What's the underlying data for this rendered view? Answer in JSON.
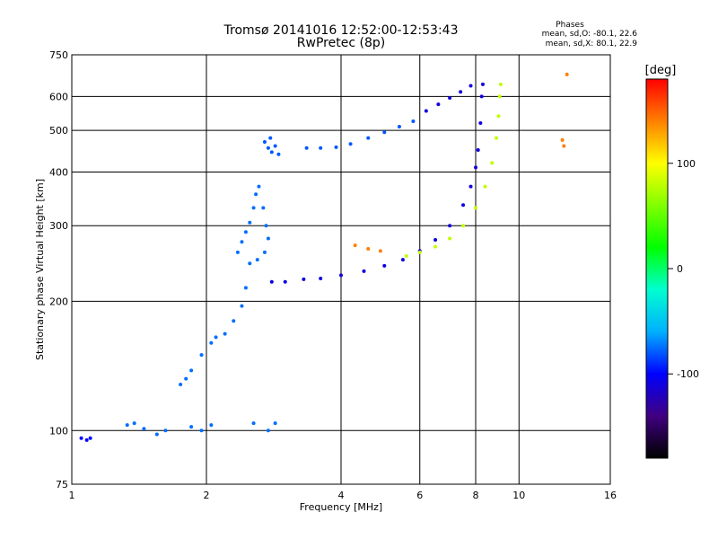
{
  "chart_data": {
    "type": "scatter",
    "title": "Tromsø 20141016 12:52:00-12:53:43",
    "subtitle": "RwPretec (8p)",
    "xlabel": "Frequency [MHz]",
    "ylabel": "Stationary phase Virtual Height [km]",
    "x_scale": "log",
    "y_scale": "log",
    "xlim": [
      1,
      16
    ],
    "ylim": [
      75,
      750
    ],
    "x_ticks": [
      1,
      2,
      4,
      6,
      8,
      10,
      16
    ],
    "y_ticks": [
      75,
      100,
      200,
      300,
      400,
      500,
      600,
      750
    ],
    "grid": true,
    "colorbar": {
      "label": "[deg]",
      "range": [
        -180,
        180
      ],
      "ticks": [
        100,
        0,
        -100
      ],
      "colors": [
        "#ff0000",
        "#ff8000",
        "#ffff00",
        "#80ff00",
        "#00ff00",
        "#00ffd0",
        "#00b0ff",
        "#0000ff",
        "#400080",
        "#000000"
      ]
    },
    "phases_heading": "Phases",
    "phases_O": "mean, sd,O: -80.1, 22.6",
    "phases_X": "mean, sd,X: 80.1, 22.9",
    "traces": [
      {
        "name": "",
        "phase": -100,
        "points": [
          [
            1.05,
            96
          ],
          [
            1.08,
            95
          ],
          [
            1.1,
            96
          ]
        ]
      },
      {
        "name": "",
        "phase": -75,
        "points": [
          [
            1.33,
            103
          ],
          [
            1.38,
            104
          ],
          [
            1.45,
            101
          ],
          [
            1.55,
            98
          ],
          [
            1.62,
            100
          ],
          [
            1.85,
            102
          ],
          [
            1.95,
            100
          ],
          [
            2.05,
            103
          ],
          [
            2.55,
            104
          ],
          [
            2.75,
            100
          ],
          [
            2.85,
            104
          ]
        ]
      },
      {
        "name": "",
        "phase": -75,
        "points": [
          [
            1.75,
            128
          ],
          [
            1.8,
            132
          ],
          [
            1.85,
            138
          ],
          [
            1.95,
            150
          ],
          [
            2.05,
            160
          ],
          [
            2.1,
            165
          ],
          [
            2.2,
            168
          ],
          [
            2.3,
            180
          ],
          [
            2.4,
            195
          ],
          [
            2.45,
            215
          ]
        ]
      },
      {
        "name": "",
        "phase": -75,
        "points": [
          [
            2.35,
            260
          ],
          [
            2.4,
            275
          ],
          [
            2.45,
            290
          ],
          [
            2.5,
            305
          ],
          [
            2.55,
            330
          ],
          [
            2.58,
            355
          ],
          [
            2.62,
            370
          ],
          [
            2.68,
            330
          ],
          [
            2.72,
            300
          ],
          [
            2.75,
            280
          ],
          [
            2.7,
            260
          ],
          [
            2.6,
            250
          ],
          [
            2.5,
            245
          ]
        ]
      },
      {
        "name": "",
        "phase": -80,
        "points": [
          [
            2.7,
            470
          ],
          [
            2.75,
            455
          ],
          [
            2.8,
            445
          ],
          [
            2.85,
            460
          ],
          [
            2.9,
            440
          ],
          [
            2.78,
            480
          ]
        ]
      },
      {
        "name": "",
        "phase": -80,
        "points": [
          [
            3.35,
            455
          ],
          [
            3.6,
            455
          ],
          [
            3.9,
            457
          ],
          [
            4.2,
            465
          ],
          [
            4.6,
            480
          ],
          [
            5.0,
            495
          ],
          [
            5.4,
            510
          ],
          [
            5.8,
            525
          ]
        ]
      },
      {
        "name": "",
        "phase": -110,
        "points": [
          [
            2.8,
            222
          ],
          [
            3.0,
            222
          ],
          [
            3.3,
            225
          ],
          [
            3.6,
            226
          ],
          [
            4.0,
            230
          ],
          [
            4.5,
            235
          ],
          [
            5.0,
            242
          ],
          [
            5.5,
            250
          ],
          [
            6.0,
            262
          ],
          [
            6.5,
            278
          ],
          [
            7.0,
            300
          ],
          [
            7.5,
            335
          ],
          [
            7.8,
            370
          ],
          [
            8.0,
            410
          ],
          [
            8.1,
            450
          ],
          [
            8.2,
            520
          ],
          [
            8.25,
            600
          ],
          [
            8.3,
            640
          ]
        ]
      },
      {
        "name": "",
        "phase": 80,
        "points": [
          [
            5.6,
            255
          ],
          [
            6.0,
            260
          ],
          [
            6.5,
            268
          ],
          [
            7.0,
            280
          ],
          [
            7.5,
            300
          ],
          [
            8.0,
            330
          ],
          [
            8.4,
            370
          ],
          [
            8.7,
            420
          ],
          [
            8.9,
            480
          ],
          [
            9.0,
            540
          ],
          [
            9.05,
            600
          ],
          [
            9.1,
            640
          ]
        ]
      },
      {
        "name": "",
        "phase": -110,
        "points": [
          [
            6.2,
            555
          ],
          [
            6.6,
            575
          ],
          [
            7.0,
            595
          ],
          [
            7.4,
            615
          ],
          [
            7.8,
            635
          ]
        ]
      },
      {
        "name": "",
        "phase": 140,
        "points": [
          [
            4.3,
            270
          ],
          [
            4.6,
            265
          ],
          [
            4.9,
            262
          ],
          [
            12.8,
            675
          ],
          [
            12.6,
            460
          ],
          [
            12.5,
            475
          ]
        ]
      }
    ]
  }
}
